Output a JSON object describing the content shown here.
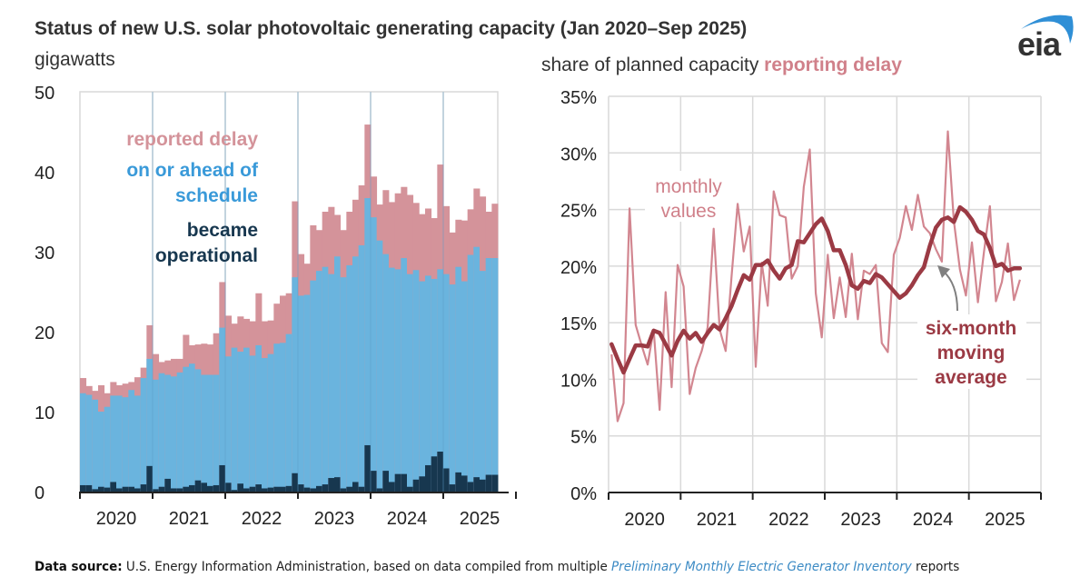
{
  "header": {
    "title": "Status of new U.S. solar photovoltaic generating capacity (Jan 2020–Sep 2025)",
    "left_unit": "gigawatts",
    "right_unit_prefix": "share of planned capacity ",
    "right_unit_highlight": "reporting delay",
    "logo_text": "eia"
  },
  "colors": {
    "delay": "#d4939a",
    "on_schedule": "#6ab4de",
    "operational": "#17374f",
    "ma_line": "#9b3a44",
    "monthly_line": "#d0808a",
    "grid": "#d9d9d9",
    "arrow": "#808080",
    "blue_text": "#3a9ad9"
  },
  "footer": {
    "label": "Data source:",
    "text_before": " U.S. Energy Information Administration, based on data compiled from multiple ",
    "italic": "Preliminary Monthly Electric Generator Inventory",
    "text_after": " reports"
  },
  "chart_data": [
    {
      "type": "bar",
      "stacked": true,
      "title": "Status of new U.S. solar photovoltaic generating capacity",
      "ylabel": "gigawatts",
      "xlabel": "",
      "ylim": [
        0,
        50
      ],
      "yticks": [
        "0",
        "10",
        "20",
        "30",
        "40",
        "50"
      ],
      "ytick_values": [
        0,
        10,
        20,
        30,
        40,
        50
      ],
      "xtick_labels": [
        "2020",
        "2021",
        "2022",
        "2023",
        "2024",
        "2025"
      ],
      "grid": "vertical year dividers",
      "legend": {
        "placement": "top-left",
        "entries": [
          {
            "lines": [
              "reported delay"
            ],
            "series": "reported delay"
          },
          {
            "lines": [
              "on or ahead of",
              "schedule"
            ],
            "series": "on or ahead of schedule"
          },
          {
            "lines": [
              "became",
              "operational"
            ],
            "series": "became operational"
          }
        ]
      },
      "start": "2020-01",
      "end": "2025-09",
      "series": [
        {
          "name": "became operational",
          "values": [
            0.8,
            0.8,
            0.3,
            0.6,
            0.5,
            1.2,
            0.4,
            0.6,
            0.6,
            0.4,
            0.9,
            3.2,
            0.3,
            0.6,
            1.6,
            0.4,
            0.4,
            0.6,
            0.8,
            1.4,
            1.1,
            0.7,
            0.8,
            3.3,
            1.1,
            0.2,
            1.0,
            0.4,
            0.6,
            0.9,
            0.4,
            0.5,
            0.6,
            0.6,
            0.7,
            2.3,
            0.9,
            0.5,
            0.4,
            0.7,
            0.9,
            1.7,
            1.8,
            0.4,
            0.6,
            1.2,
            0.6,
            5.8,
            2.6,
            0.4,
            2.6,
            1.2,
            2.2,
            2.2,
            0.6,
            1.5,
            1.9,
            3.3,
            4.4,
            5.0,
            2.9,
            0.9,
            2.4,
            2.0,
            1.2,
            1.8,
            1.5,
            2.1,
            2.1
          ]
        },
        {
          "name": "on or ahead of schedule",
          "cumulative_top": [
            12.3,
            12.1,
            11.5,
            10.0,
            10.6,
            12.0,
            12.0,
            11.8,
            12.7,
            12.0,
            14.2,
            16.6,
            14.0,
            14.8,
            14.6,
            14.4,
            14.9,
            15.6,
            16.0,
            15.3,
            14.6,
            14.6,
            14.6,
            20.5,
            16.9,
            18.0,
            17.5,
            18.0,
            17.0,
            18.3,
            16.7,
            17.2,
            18.5,
            18.6,
            19.7,
            26.8,
            24.5,
            24.6,
            26.4,
            27.6,
            28.1,
            27.2,
            29.4,
            26.8,
            28.3,
            29.4,
            30.8,
            36.7,
            34.3,
            31.4,
            29.7,
            28.0,
            27.8,
            29.2,
            27.2,
            27.7,
            26.3,
            27.0,
            26.6,
            27.8,
            27.2,
            25.9,
            28.1,
            26.3,
            29.6,
            30.6,
            27.6,
            29.2,
            29.2
          ]
        },
        {
          "name": "reported delay",
          "cumulative_top": [
            14.2,
            13.2,
            12.6,
            13.3,
            12.3,
            13.7,
            13.3,
            13.5,
            13.7,
            14.3,
            15.5,
            20.8,
            17.2,
            16.2,
            16.4,
            16.6,
            16.6,
            19.6,
            18.3,
            18.4,
            18.5,
            18.4,
            19.8,
            26.2,
            22.0,
            21.0,
            21.9,
            21.6,
            21.3,
            24.8,
            21.3,
            21.4,
            23.5,
            24.5,
            24.8,
            36.3,
            29.7,
            28.5,
            33.3,
            32.7,
            35.0,
            35.6,
            34.6,
            32.7,
            35.0,
            36.5,
            38.3,
            45.9,
            39.4,
            35.9,
            37.7,
            36.2,
            37.3,
            38.1,
            37.1,
            36.1,
            34.7,
            35.4,
            34.2,
            40.9,
            35.7,
            32.4,
            34.0,
            33.9,
            35.3,
            37.9,
            36.9,
            35.0,
            36.0
          ]
        }
      ]
    },
    {
      "type": "line",
      "title": "share of planned capacity reporting delay",
      "ylabel": "share of planned capacity reporting delay",
      "xlabel": "",
      "ylim": [
        0,
        35
      ],
      "yticks": [
        "0%",
        "5%",
        "10%",
        "15%",
        "20%",
        "25%",
        "30%",
        "35%"
      ],
      "ytick_values": [
        0,
        5,
        10,
        15,
        20,
        25,
        30,
        35
      ],
      "xtick_labels": [
        "2020",
        "2021",
        "2022",
        "2023",
        "2024",
        "2025"
      ],
      "grid": true,
      "start": "2020-01",
      "end": "2025-09",
      "annotations": [
        {
          "lines": [
            "monthly",
            "values"
          ],
          "series": "monthly values"
        },
        {
          "lines": [
            "six-month",
            "moving",
            "average"
          ],
          "series": "six-month moving average",
          "arrow": true
        }
      ],
      "series": [
        {
          "name": "monthly values",
          "values": [
            12.2,
            6.3,
            7.9,
            25.1,
            14.8,
            13.0,
            11.3,
            14.4,
            7.3,
            17.7,
            9.3,
            20.1,
            18.2,
            8.7,
            11.0,
            12.5,
            14.6,
            23.3,
            14.4,
            12.5,
            19.2,
            25.5,
            21.3,
            23.5,
            11.1,
            20.3,
            16.5,
            26.6,
            24.5,
            24.3,
            18.9,
            20.0,
            27.0,
            30.3,
            17.6,
            13.7,
            21.0,
            15.4,
            19.0,
            15.5,
            21.1,
            15.3,
            19.6,
            19.3,
            20.1,
            13.2,
            12.4,
            21.0,
            22.5,
            25.3,
            23.2,
            26.3,
            23.5,
            22.9,
            21.5,
            20.4,
            31.9,
            24.0,
            19.7,
            17.4,
            22.1,
            16.8,
            21.2,
            25.3,
            16.9,
            18.6,
            22.0,
            17.0,
            18.8
          ]
        },
        {
          "name": "six-month moving average",
          "values": [
            13.1,
            11.8,
            10.6,
            11.8,
            13.0,
            13.0,
            12.9,
            14.3,
            14.1,
            13.1,
            12.1,
            13.4,
            14.3,
            13.6,
            14.1,
            13.3,
            14.1,
            14.8,
            14.4,
            15.4,
            16.5,
            17.9,
            19.2,
            18.8,
            20.1,
            20.1,
            20.5,
            19.6,
            18.9,
            19.8,
            20.1,
            22.2,
            22.1,
            22.9,
            23.7,
            24.2,
            23.1,
            21.4,
            21.4,
            20.1,
            18.3,
            18.0,
            18.7,
            18.5,
            19.3,
            19.0,
            18.4,
            17.8,
            17.2,
            17.6,
            18.3,
            19.2,
            19.9,
            21.8,
            23.4,
            24.1,
            24.3,
            23.9,
            25.2,
            24.8,
            24.1,
            23.1,
            22.8,
            21.6,
            20.0,
            20.2,
            19.6,
            19.8,
            19.8
          ]
        }
      ]
    }
  ]
}
